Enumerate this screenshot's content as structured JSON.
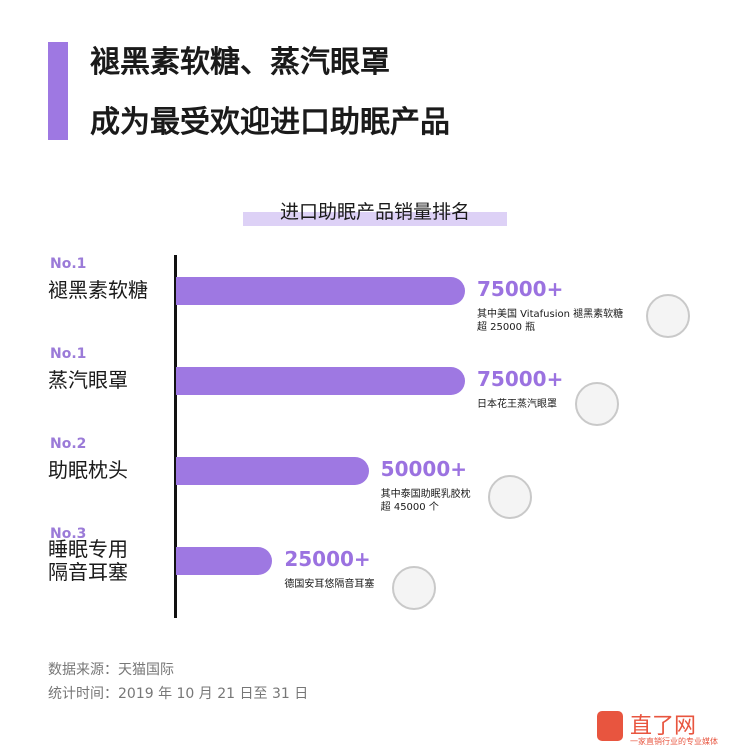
{
  "chart_data": {
    "type": "bar",
    "orientation": "horizontal",
    "title_lines": [
      "褪黑素软糖、蒸汽眼罩",
      "成为最受欢迎进口助眠产品"
    ],
    "chart_title": "进口助眠产品销量排名",
    "ranks": [
      "No.1",
      "No.1",
      "No.2",
      "No.3"
    ],
    "categories": [
      "褪黑素软糖",
      "蒸汽眼罩",
      "助眠枕头",
      "睡眠专用\n隔音耳塞"
    ],
    "values": [
      75000,
      75000,
      50000,
      25000
    ],
    "value_labels": [
      "75000+",
      "75000+",
      "50000+",
      "25000+"
    ],
    "notes": [
      "其中美国 Vitafusion 褪黑素软糖\n超 25000 瓶",
      "日本花王蒸汽眼罩",
      "其中泰国助眠乳胶枕\n超 45000 个",
      "德国安耳悠隔音耳塞"
    ],
    "color": "#9e78e2",
    "xlim": [
      0,
      75000
    ],
    "source": "数据来源：天猫国际",
    "period": "统计时间：2019 年 10 月 21 日至 31 日",
    "logo": "直了网",
    "tagline": "一家直销行业的专业媒体"
  }
}
